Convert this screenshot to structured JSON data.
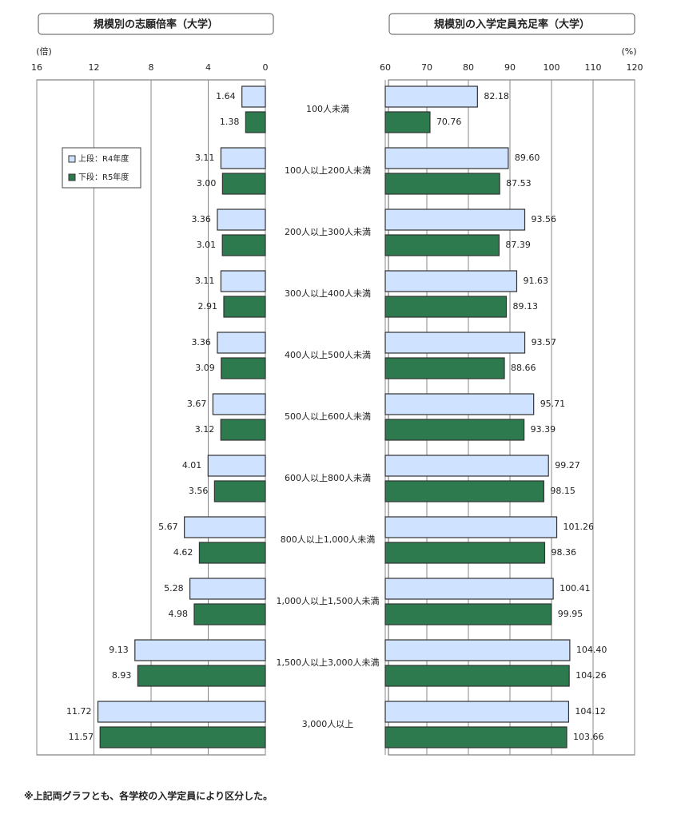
{
  "chart_data": [
    {
      "type": "bar",
      "title": "規模別の志願倍率（大学）",
      "unit": "(倍)",
      "categories": [
        "100人未満",
        "100人以上200人未満",
        "200人以上300人未満",
        "300人以上400人未満",
        "400人以上500人未満",
        "500人以上600人未満",
        "600人以上800人未満",
        "800人以上1,000人未満",
        "1,000人以上1,500人未満",
        "1,500人以上3,000人未満",
        "3,000人以上"
      ],
      "series": [
        {
          "name": "上段：R4年度",
          "color": "#cfe2ff",
          "values": [
            1.64,
            3.11,
            3.36,
            3.11,
            3.36,
            3.67,
            4.01,
            5.67,
            5.28,
            9.13,
            11.72
          ],
          "value_labels": [
            "1.64",
            "3.11",
            "3.36",
            "3.11",
            "3.36",
            "3.67",
            "4.01",
            "5.67",
            "5.28",
            "9.13",
            "11.72"
          ]
        },
        {
          "name": "下段：R5年度",
          "color": "#2d7a4e",
          "values": [
            1.38,
            3.0,
            3.01,
            2.91,
            3.09,
            3.12,
            3.56,
            4.62,
            4.98,
            8.93,
            11.57
          ],
          "value_labels": [
            "1.38",
            "3.00",
            "3.01",
            "2.91",
            "3.09",
            "3.12",
            "3.56",
            "4.62",
            "4.98",
            "8.93",
            "11.57"
          ]
        }
      ],
      "xlim": [
        16,
        0
      ],
      "xticks": [
        16,
        12,
        8,
        4,
        0
      ],
      "grid": true
    },
    {
      "type": "bar",
      "title": "規模別の入学定員充足率（大学）",
      "unit": "(%)",
      "series": [
        {
          "color": "#cfe2ff",
          "values": [
            82.18,
            89.6,
            93.56,
            91.63,
            93.57,
            95.71,
            99.27,
            101.26,
            100.41,
            104.4,
            104.12
          ],
          "value_labels": [
            "82.18",
            "89.60",
            "93.56",
            "91.63",
            "93.57",
            "95.71",
            "99.27",
            "101.26",
            "100.41",
            "104.40",
            "104.12"
          ]
        },
        {
          "color": "#2d7a4e",
          "values": [
            70.76,
            87.53,
            87.39,
            89.13,
            88.66,
            93.39,
            98.15,
            98.36,
            99.95,
            104.26,
            103.66
          ],
          "value_labels": [
            "70.76",
            "87.53",
            "87.39",
            "89.13",
            "88.66",
            "93.39",
            "98.15",
            "98.36",
            "99.95",
            "104.26",
            "103.66"
          ]
        }
      ],
      "xlim": [
        60,
        120
      ],
      "xticks": [
        60,
        70,
        80,
        90,
        100,
        110,
        120
      ],
      "grid": true
    }
  ],
  "footnote": "※上記両グラフとも、各学校の入学定員により区分した。"
}
